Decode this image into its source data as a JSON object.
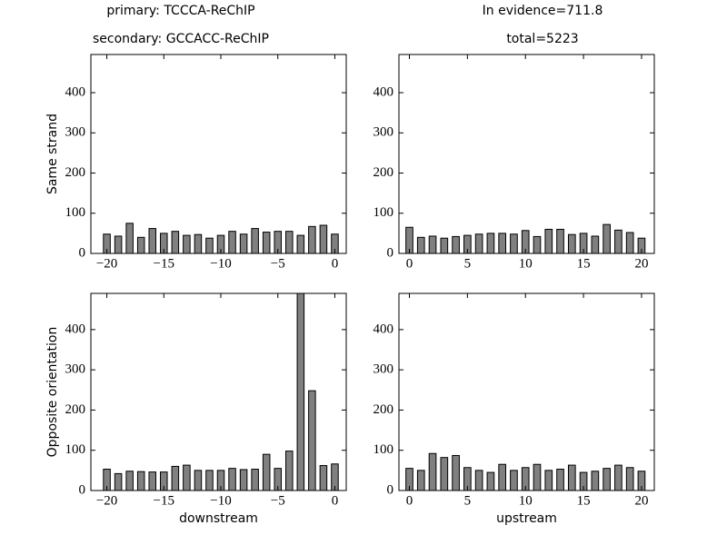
{
  "chart_data": [
    {
      "type": "bar",
      "title": "primary: TCCCA-ReChIP",
      "subtitle": "secondary: GCCACC-ReChIP",
      "ylabel": "Same strand",
      "x": [
        -20,
        -19,
        -18,
        -17,
        -16,
        -15,
        -14,
        -13,
        -12,
        -11,
        -10,
        -9,
        -8,
        -7,
        -6,
        -5,
        -4,
        -3,
        -2,
        -1,
        0
      ],
      "values": [
        48,
        43,
        75,
        40,
        62,
        50,
        55,
        45,
        47,
        38,
        45,
        55,
        48,
        62,
        53,
        55,
        55,
        45,
        67,
        70,
        48
      ],
      "color": "#808080",
      "xlim": [
        -21.4,
        1
      ],
      "ylim": [
        0,
        495
      ],
      "xticks": [
        {
          "value": -20,
          "label": "−20"
        },
        {
          "value": -15,
          "label": "−15"
        },
        {
          "value": -10,
          "label": "−10"
        },
        {
          "value": -5,
          "label": "−5"
        },
        0
      ],
      "yticks": [
        0,
        100,
        200,
        300,
        400
      ]
    },
    {
      "type": "bar",
      "title": "In evidence=711.8",
      "subtitle": "total=5223",
      "x": [
        0,
        1,
        2,
        3,
        4,
        5,
        6,
        7,
        8,
        9,
        10,
        11,
        12,
        13,
        14,
        15,
        16,
        17,
        18,
        19,
        20
      ],
      "values": [
        65,
        40,
        43,
        38,
        42,
        45,
        48,
        50,
        50,
        48,
        57,
        42,
        60,
        60,
        47,
        50,
        43,
        72,
        58,
        52,
        38
      ],
      "color": "#808080",
      "xlim": [
        -0.9,
        21.1
      ],
      "ylim": [
        0,
        495
      ],
      "xticks": [
        0,
        5,
        10,
        15,
        20
      ],
      "yticks": [
        0,
        100,
        200,
        300,
        400
      ]
    },
    {
      "type": "bar",
      "ylabel": "Opposite orientation",
      "xlabel": "downstream",
      "x": [
        -20,
        -19,
        -18,
        -17,
        -16,
        -15,
        -14,
        -13,
        -12,
        -11,
        -10,
        -9,
        -8,
        -7,
        -6,
        -5,
        -4,
        -3,
        -2,
        -1,
        0
      ],
      "values": [
        53,
        42,
        48,
        47,
        46,
        46,
        60,
        63,
        50,
        50,
        50,
        55,
        52,
        53,
        90,
        55,
        98,
        490,
        248,
        62,
        66
      ],
      "color": "#808080",
      "xlim": [
        -21.4,
        1
      ],
      "ylim": [
        0,
        490
      ],
      "xticks": [
        {
          "value": -20,
          "label": "−20"
        },
        {
          "value": -15,
          "label": "−15"
        },
        {
          "value": -10,
          "label": "−10"
        },
        {
          "value": -5,
          "label": "−5"
        },
        0
      ],
      "yticks": [
        0,
        100,
        200,
        300,
        400
      ]
    },
    {
      "type": "bar",
      "xlabel": "upstream",
      "x": [
        0,
        1,
        2,
        3,
        4,
        5,
        6,
        7,
        8,
        9,
        10,
        11,
        12,
        13,
        14,
        15,
        16,
        17,
        18,
        19,
        20
      ],
      "values": [
        55,
        50,
        92,
        82,
        87,
        57,
        50,
        45,
        65,
        50,
        57,
        65,
        50,
        53,
        63,
        45,
        48,
        55,
        63,
        57,
        48
      ],
      "color": "#808080",
      "xlim": [
        -0.9,
        21.1
      ],
      "ylim": [
        0,
        490
      ],
      "xticks": [
        0,
        5,
        10,
        15,
        20
      ],
      "yticks": [
        0,
        100,
        200,
        300,
        400
      ]
    }
  ]
}
